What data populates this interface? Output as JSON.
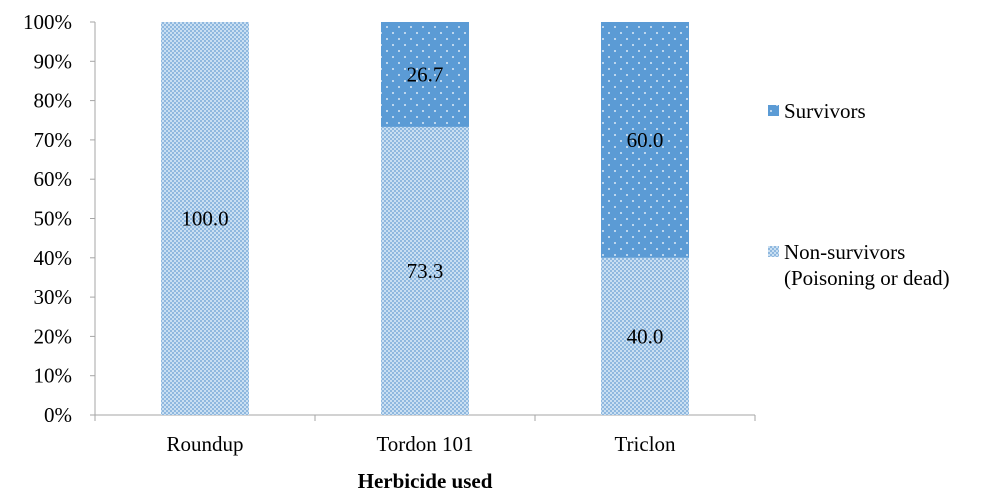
{
  "chart_data": {
    "type": "bar",
    "stacked": true,
    "percent_stacked": true,
    "categories": [
      "Roundup",
      "Tordon 101",
      "Triclon"
    ],
    "series": [
      {
        "name": "Non-survivors (Poisoning or dead)",
        "legend_lines": [
          "Non-survivors",
          "(Poisoning or dead)"
        ],
        "values": [
          100.0,
          73.3,
          40.0
        ],
        "labels": [
          "100.0",
          "73.3",
          "40.0"
        ],
        "color": "#9dc3e6",
        "pattern": "checker"
      },
      {
        "name": "Survivors",
        "legend_lines": [
          "Survivors"
        ],
        "values": [
          0.0,
          26.7,
          60.0
        ],
        "labels": [
          "",
          "26.7",
          "60.0"
        ],
        "color": "#5b9bd5",
        "pattern": "dots"
      }
    ],
    "xlabel": "Herbicide used",
    "ylabel": "",
    "ylim": [
      0,
      100
    ],
    "yticks": [
      "0%",
      "10%",
      "20%",
      "30%",
      "40%",
      "50%",
      "60%",
      "70%",
      "80%",
      "90%",
      "100%"
    ],
    "grid": false,
    "legend_position": "right"
  }
}
